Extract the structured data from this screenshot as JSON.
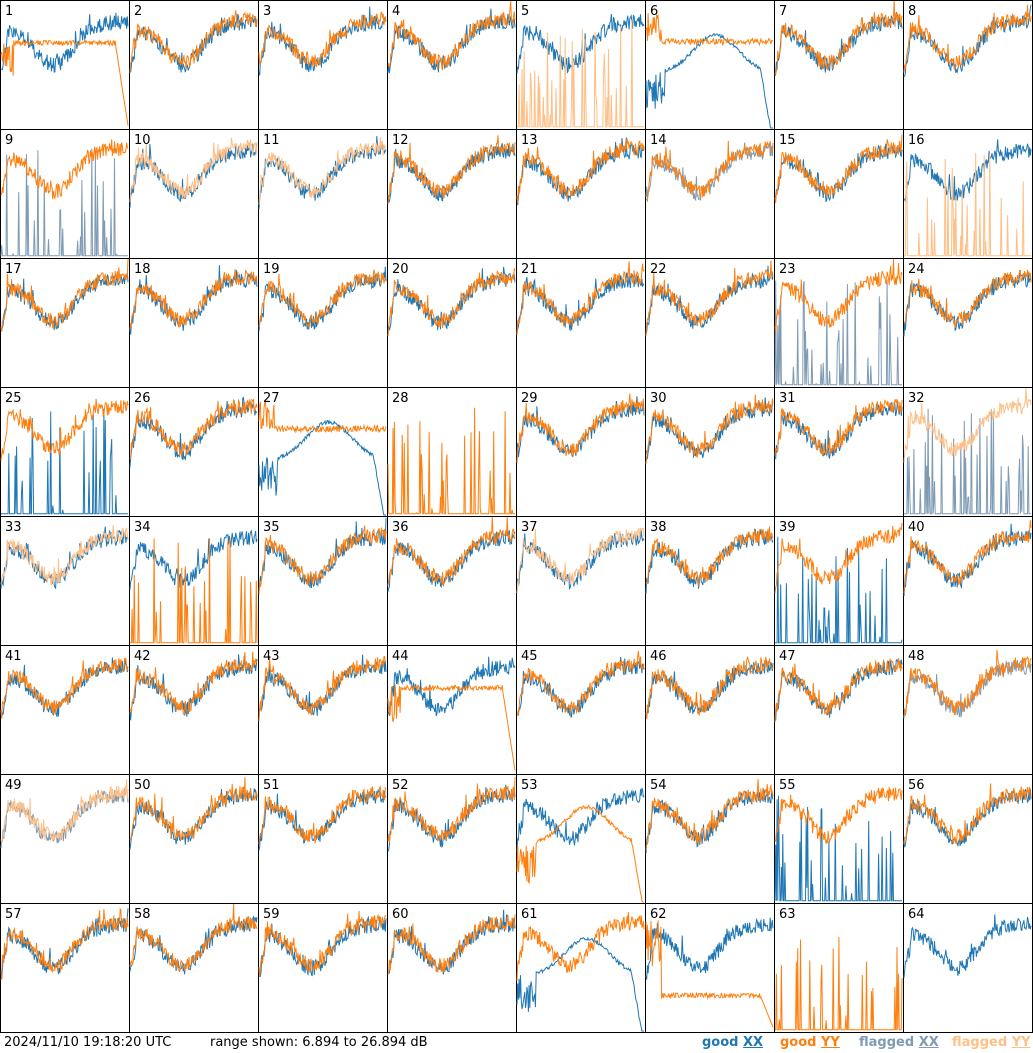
{
  "footer": {
    "timestamp": "2024/11/10 19:18:20 UTC",
    "range_text": "range shown: 6.894 to 26.894 dB"
  },
  "legend": [
    {
      "status": "good",
      "pol": "XX",
      "color": "#1f77b4"
    },
    {
      "status": "good",
      "pol": "YY",
      "color": "#ff7f0e"
    },
    {
      "status": "flagged",
      "pol": "XX",
      "color": "#7f9bb4"
    },
    {
      "status": "flagged",
      "pol": "YY",
      "color": "#ffbf86"
    }
  ],
  "chart_data": {
    "type": "line",
    "title": "",
    "layout": "8x8 small multiples",
    "ylim": [
      6.894,
      26.894
    ],
    "y_unit": "dB",
    "panels": [
      {
        "id": "1",
        "xx": "good",
        "yy": "good",
        "xx_shape": "normal",
        "yy_shape": "plateau_drop"
      },
      {
        "id": "2",
        "xx": "good",
        "yy": "good",
        "xx_shape": "normal",
        "yy_shape": "normal"
      },
      {
        "id": "3",
        "xx": "good",
        "yy": "good",
        "xx_shape": "normal",
        "yy_shape": "normal"
      },
      {
        "id": "4",
        "xx": "good",
        "yy": "good",
        "xx_shape": "normal",
        "yy_shape": "normal"
      },
      {
        "id": "5",
        "xx": "good",
        "yy": "flagged",
        "xx_shape": "normal",
        "yy_shape": "spikes"
      },
      {
        "id": "6",
        "xx": "good",
        "yy": "good",
        "xx_shape": "dip_drop",
        "yy_shape": "plateau"
      },
      {
        "id": "7",
        "xx": "good",
        "yy": "good",
        "xx_shape": "normal",
        "yy_shape": "normal"
      },
      {
        "id": "8",
        "xx": "good",
        "yy": "good",
        "xx_shape": "normal",
        "yy_shape": "normal"
      },
      {
        "id": "9",
        "xx": "flagged",
        "yy": "good",
        "xx_shape": "spikes",
        "yy_shape": "normal"
      },
      {
        "id": "10",
        "xx": "good",
        "yy": "flagged",
        "xx_shape": "normal",
        "yy_shape": "normal"
      },
      {
        "id": "11",
        "xx": "good",
        "yy": "flagged",
        "xx_shape": "normal",
        "yy_shape": "normal"
      },
      {
        "id": "12",
        "xx": "good",
        "yy": "good",
        "xx_shape": "normal",
        "yy_shape": "normal"
      },
      {
        "id": "13",
        "xx": "good",
        "yy": "good",
        "xx_shape": "normal",
        "yy_shape": "normal"
      },
      {
        "id": "14",
        "xx": "flagged",
        "yy": "good",
        "xx_shape": "normal",
        "yy_shape": "normal"
      },
      {
        "id": "15",
        "xx": "good",
        "yy": "good",
        "xx_shape": "normal",
        "yy_shape": "normal"
      },
      {
        "id": "16",
        "xx": "good",
        "yy": "flagged",
        "xx_shape": "normal",
        "yy_shape": "spikes"
      },
      {
        "id": "17",
        "xx": "good",
        "yy": "good",
        "xx_shape": "normal",
        "yy_shape": "normal"
      },
      {
        "id": "18",
        "xx": "good",
        "yy": "good",
        "xx_shape": "normal",
        "yy_shape": "normal"
      },
      {
        "id": "19",
        "xx": "good",
        "yy": "good",
        "xx_shape": "normal",
        "yy_shape": "normal"
      },
      {
        "id": "20",
        "xx": "good",
        "yy": "good",
        "xx_shape": "normal",
        "yy_shape": "normal"
      },
      {
        "id": "21",
        "xx": "good",
        "yy": "good",
        "xx_shape": "normal",
        "yy_shape": "normal"
      },
      {
        "id": "22",
        "xx": "good",
        "yy": "good",
        "xx_shape": "normal",
        "yy_shape": "normal"
      },
      {
        "id": "23",
        "xx": "flagged",
        "yy": "good",
        "xx_shape": "spikes",
        "yy_shape": "normal"
      },
      {
        "id": "24",
        "xx": "good",
        "yy": "good",
        "xx_shape": "normal",
        "yy_shape": "normal"
      },
      {
        "id": "25",
        "xx": "good",
        "yy": "good",
        "xx_shape": "spikes",
        "yy_shape": "normal"
      },
      {
        "id": "26",
        "xx": "good",
        "yy": "good",
        "xx_shape": "normal",
        "yy_shape": "normal"
      },
      {
        "id": "27",
        "xx": "good",
        "yy": "good",
        "xx_shape": "dip_drop",
        "yy_shape": "plateau"
      },
      {
        "id": "28",
        "xx": "good",
        "yy": "good",
        "xx_shape": "none",
        "yy_shape": "spikes"
      },
      {
        "id": "29",
        "xx": "good",
        "yy": "good",
        "xx_shape": "normal",
        "yy_shape": "normal"
      },
      {
        "id": "30",
        "xx": "good",
        "yy": "good",
        "xx_shape": "normal",
        "yy_shape": "normal"
      },
      {
        "id": "31",
        "xx": "good",
        "yy": "good",
        "xx_shape": "normal",
        "yy_shape": "normal"
      },
      {
        "id": "32",
        "xx": "flagged",
        "yy": "flagged",
        "xx_shape": "spikes",
        "yy_shape": "normal"
      },
      {
        "id": "33",
        "xx": "good",
        "yy": "flagged",
        "xx_shape": "normal",
        "yy_shape": "normal"
      },
      {
        "id": "34",
        "xx": "good",
        "yy": "good",
        "xx_shape": "normal",
        "yy_shape": "spikes"
      },
      {
        "id": "35",
        "xx": "good",
        "yy": "good",
        "xx_shape": "normal",
        "yy_shape": "normal"
      },
      {
        "id": "36",
        "xx": "good",
        "yy": "good",
        "xx_shape": "normal",
        "yy_shape": "normal"
      },
      {
        "id": "37",
        "xx": "good",
        "yy": "flagged",
        "xx_shape": "normal",
        "yy_shape": "normal"
      },
      {
        "id": "38",
        "xx": "good",
        "yy": "good",
        "xx_shape": "normal",
        "yy_shape": "normal"
      },
      {
        "id": "39",
        "xx": "good",
        "yy": "good",
        "xx_shape": "spikes",
        "yy_shape": "normal"
      },
      {
        "id": "40",
        "xx": "good",
        "yy": "good",
        "xx_shape": "normal",
        "yy_shape": "normal"
      },
      {
        "id": "41",
        "xx": "good",
        "yy": "good",
        "xx_shape": "normal",
        "yy_shape": "normal"
      },
      {
        "id": "42",
        "xx": "good",
        "yy": "good",
        "xx_shape": "normal",
        "yy_shape": "normal"
      },
      {
        "id": "43",
        "xx": "good",
        "yy": "good",
        "xx_shape": "normal",
        "yy_shape": "normal"
      },
      {
        "id": "44",
        "xx": "good",
        "yy": "good",
        "xx_shape": "normal",
        "yy_shape": "plateau_drop"
      },
      {
        "id": "45",
        "xx": "good",
        "yy": "good",
        "xx_shape": "normal",
        "yy_shape": "normal"
      },
      {
        "id": "46",
        "xx": "good",
        "yy": "good",
        "xx_shape": "normal",
        "yy_shape": "normal"
      },
      {
        "id": "47",
        "xx": "good",
        "yy": "good",
        "xx_shape": "normal",
        "yy_shape": "normal"
      },
      {
        "id": "48",
        "xx": "flagged",
        "yy": "good",
        "xx_shape": "normal",
        "yy_shape": "normal"
      },
      {
        "id": "49",
        "xx": "flagged",
        "yy": "flagged",
        "xx_shape": "normal",
        "yy_shape": "normal"
      },
      {
        "id": "50",
        "xx": "good",
        "yy": "good",
        "xx_shape": "normal",
        "yy_shape": "normal"
      },
      {
        "id": "51",
        "xx": "good",
        "yy": "good",
        "xx_shape": "normal",
        "yy_shape": "normal"
      },
      {
        "id": "52",
        "xx": "good",
        "yy": "good",
        "xx_shape": "normal",
        "yy_shape": "normal"
      },
      {
        "id": "53",
        "xx": "good",
        "yy": "good",
        "xx_shape": "normal",
        "yy_shape": "dip_drop"
      },
      {
        "id": "54",
        "xx": "good",
        "yy": "good",
        "xx_shape": "normal",
        "yy_shape": "normal"
      },
      {
        "id": "55",
        "xx": "good",
        "yy": "good",
        "xx_shape": "spikes",
        "yy_shape": "normal"
      },
      {
        "id": "56",
        "xx": "good",
        "yy": "good",
        "xx_shape": "normal",
        "yy_shape": "normal"
      },
      {
        "id": "57",
        "xx": "good",
        "yy": "good",
        "xx_shape": "normal",
        "yy_shape": "normal"
      },
      {
        "id": "58",
        "xx": "good",
        "yy": "good",
        "xx_shape": "normal",
        "yy_shape": "normal"
      },
      {
        "id": "59",
        "xx": "good",
        "yy": "good",
        "xx_shape": "normal",
        "yy_shape": "normal"
      },
      {
        "id": "60",
        "xx": "good",
        "yy": "good",
        "xx_shape": "normal",
        "yy_shape": "normal"
      },
      {
        "id": "61",
        "xx": "good",
        "yy": "good",
        "xx_shape": "dip_drop",
        "yy_shape": "normal"
      },
      {
        "id": "62",
        "xx": "good",
        "yy": "good",
        "xx_shape": "normal",
        "yy_shape": "low_plateau"
      },
      {
        "id": "63",
        "xx": "good",
        "yy": "good",
        "xx_shape": "none",
        "yy_shape": "spikes"
      },
      {
        "id": "64",
        "xx": "good",
        "yy": "good",
        "xx_shape": "normal",
        "yy_shape": "none"
      }
    ]
  }
}
